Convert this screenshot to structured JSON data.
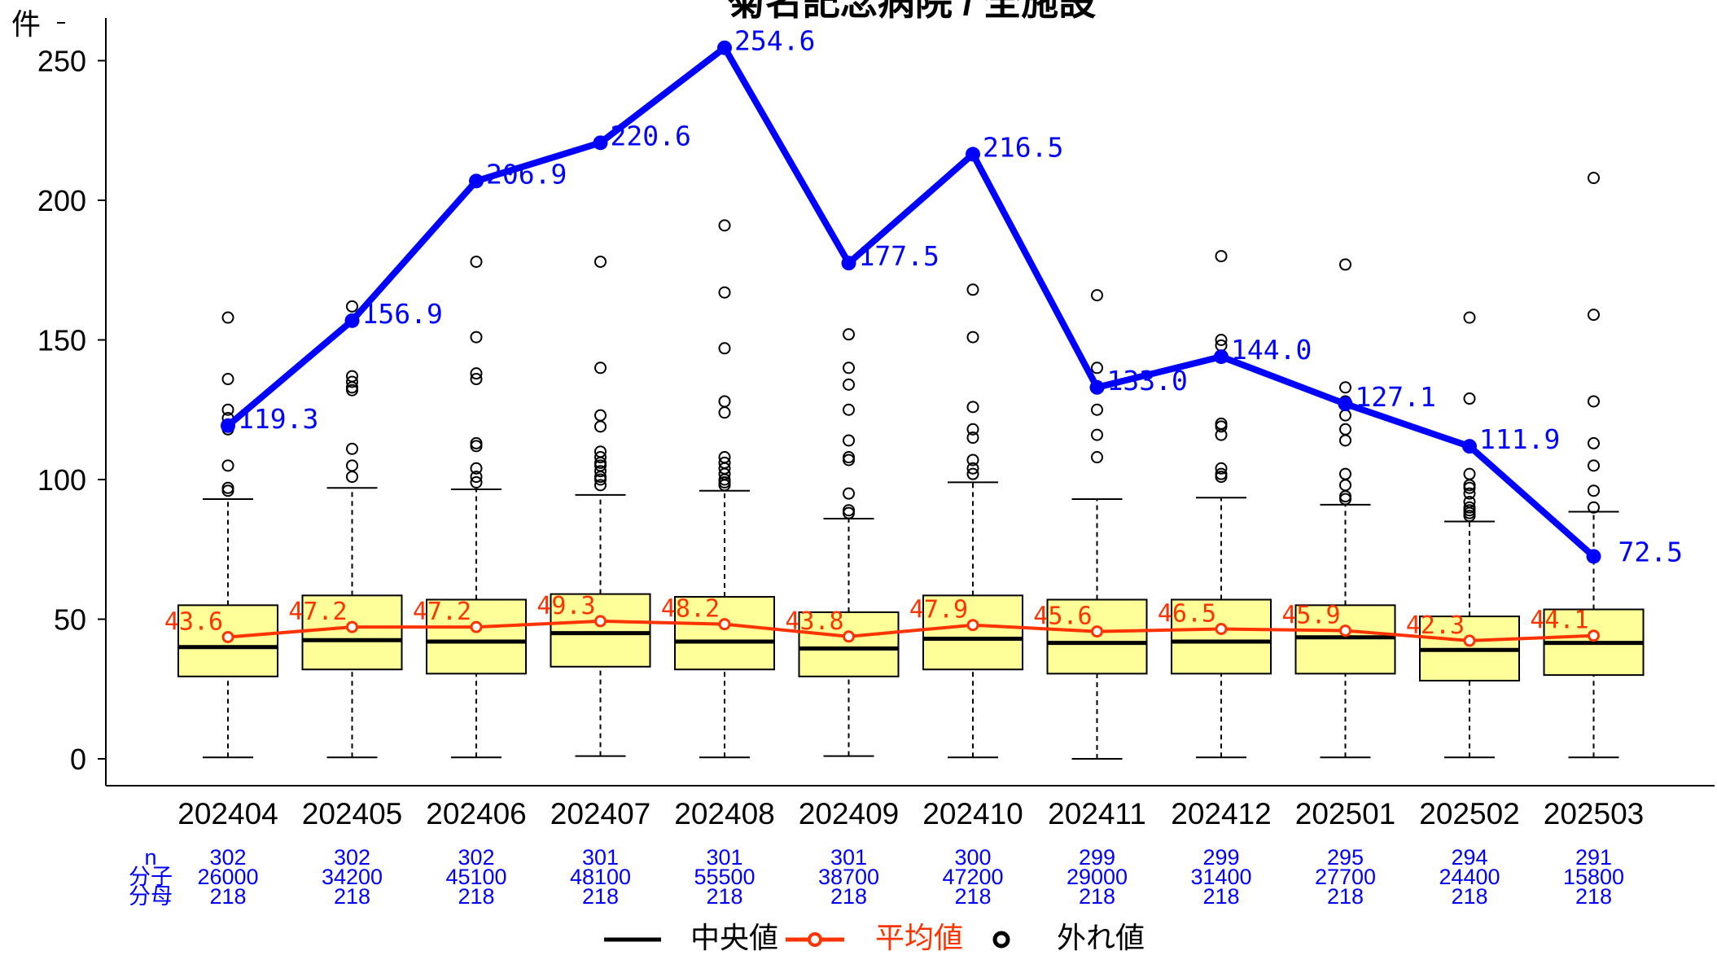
{
  "chart_data": {
    "type": "boxplot-with-lines",
    "title": "菊名記念病院 / 全施設",
    "ylabel": "件",
    "ylim": [
      0,
      270
    ],
    "yticks": [
      0,
      50,
      100,
      150,
      200,
      250
    ],
    "categories": [
      "202404",
      "202405",
      "202406",
      "202407",
      "202408",
      "202409",
      "202410",
      "202411",
      "202412",
      "202501",
      "202502",
      "202503"
    ],
    "hospital_series": {
      "values": [
        119.3,
        156.9,
        206.9,
        220.6,
        254.6,
        177.5,
        216.5,
        133.0,
        144.0,
        127.1,
        111.9,
        72.5
      ],
      "labels": [
        "119.3",
        "156.9",
        "206.9",
        "220.6",
        "254.6",
        "177.5",
        "216.5",
        "133.0",
        "144.0",
        "127.1",
        "111.9",
        "72.5"
      ],
      "color": "#0000ff"
    },
    "mean_series": {
      "name": "平均値",
      "values": [
        43.6,
        47.2,
        47.2,
        49.3,
        48.2,
        43.8,
        47.9,
        45.6,
        46.5,
        45.9,
        42.3,
        44.1
      ],
      "labels": [
        "43.6",
        "47.2",
        "47.2",
        "49.3",
        "48.2",
        "43.8",
        "47.9",
        "45.6",
        "46.5",
        "45.9",
        "42.3",
        "44.1"
      ],
      "color": "#ff3300"
    },
    "boxes": [
      {
        "q1": 29.5,
        "median": 40,
        "q3": 55,
        "whisker_low": 0.5,
        "whisker_high": 93,
        "outliers": [
          96,
          97,
          105,
          118,
          122,
          125,
          136,
          158
        ]
      },
      {
        "q1": 32,
        "median": 42.5,
        "q3": 58.5,
        "whisker_low": 0.5,
        "whisker_high": 97,
        "outliers": [
          101,
          105,
          111,
          132,
          133,
          135,
          137,
          162
        ]
      },
      {
        "q1": 30.5,
        "median": 42,
        "q3": 57,
        "whisker_low": 0.5,
        "whisker_high": 96.5,
        "outliers": [
          99,
          101,
          104,
          112,
          113,
          136,
          138,
          151,
          178
        ]
      },
      {
        "q1": 33,
        "median": 45,
        "q3": 59,
        "whisker_low": 1,
        "whisker_high": 94.5,
        "outliers": [
          98,
          100,
          101,
          103,
          105,
          106,
          108,
          110,
          119,
          123,
          140,
          178
        ]
      },
      {
        "q1": 32,
        "median": 42,
        "q3": 58,
        "whisker_low": 0.5,
        "whisker_high": 96,
        "outliers": [
          98,
          99,
          100,
          102,
          104,
          106,
          108,
          124,
          128,
          147,
          167,
          191
        ]
      },
      {
        "q1": 29.5,
        "median": 39.5,
        "q3": 52.5,
        "whisker_low": 1,
        "whisker_high": 86,
        "outliers": [
          88,
          89,
          95,
          107,
          108,
          114,
          125,
          134,
          140,
          152
        ]
      },
      {
        "q1": 32,
        "median": 43,
        "q3": 58.5,
        "whisker_low": 0.5,
        "whisker_high": 99,
        "outliers": [
          102,
          104,
          107,
          115,
          118,
          126,
          151,
          168
        ]
      },
      {
        "q1": 30.5,
        "median": 41.5,
        "q3": 57,
        "whisker_low": 0,
        "whisker_high": 93,
        "outliers": [
          108,
          116,
          125,
          140,
          166
        ]
      },
      {
        "q1": 30.5,
        "median": 42,
        "q3": 57,
        "whisker_low": 0.5,
        "whisker_high": 93.5,
        "outliers": [
          101,
          102,
          104,
          116,
          119,
          120,
          148,
          150,
          180
        ]
      },
      {
        "q1": 30.5,
        "median": 43.5,
        "q3": 55,
        "whisker_low": 0.5,
        "whisker_high": 91,
        "outliers": [
          93,
          94,
          98,
          102,
          114,
          118,
          123,
          128,
          133,
          177
        ]
      },
      {
        "q1": 28,
        "median": 39,
        "q3": 51,
        "whisker_low": 0.5,
        "whisker_high": 85,
        "outliers": [
          87,
          88,
          89,
          90,
          92,
          95,
          97,
          98,
          102,
          129,
          158
        ]
      },
      {
        "q1": 30,
        "median": 41.5,
        "q3": 53.5,
        "whisker_low": 0.5,
        "whisker_high": 88.5,
        "outliers": [
          90,
          96,
          105,
          113,
          128,
          159,
          208
        ]
      }
    ],
    "stats_row_labels": [
      "n",
      "分子",
      "分母"
    ],
    "stats": [
      {
        "n": "302",
        "numerator": "26000",
        "denominator": "218"
      },
      {
        "n": "302",
        "numerator": "34200",
        "denominator": "218"
      },
      {
        "n": "302",
        "numerator": "45100",
        "denominator": "218"
      },
      {
        "n": "301",
        "numerator": "48100",
        "denominator": "218"
      },
      {
        "n": "301",
        "numerator": "55500",
        "denominator": "218"
      },
      {
        "n": "301",
        "numerator": "38700",
        "denominator": "218"
      },
      {
        "n": "300",
        "numerator": "47200",
        "denominator": "218"
      },
      {
        "n": "299",
        "numerator": "29000",
        "denominator": "218"
      },
      {
        "n": "299",
        "numerator": "31400",
        "denominator": "218"
      },
      {
        "n": "295",
        "numerator": "27700",
        "denominator": "218"
      },
      {
        "n": "294",
        "numerator": "24400",
        "denominator": "218"
      },
      {
        "n": "291",
        "numerator": "15800",
        "denominator": "218"
      }
    ],
    "legend": {
      "position": "bottom",
      "items": [
        {
          "label": "中央値",
          "color": "#000000",
          "kind": "line"
        },
        {
          "label": "平均値",
          "color": "#ff3300",
          "kind": "line-point"
        },
        {
          "label": "外れ値",
          "color": "#000000",
          "kind": "circle"
        }
      ]
    },
    "box_fill": "#ffff99",
    "grid": false
  }
}
